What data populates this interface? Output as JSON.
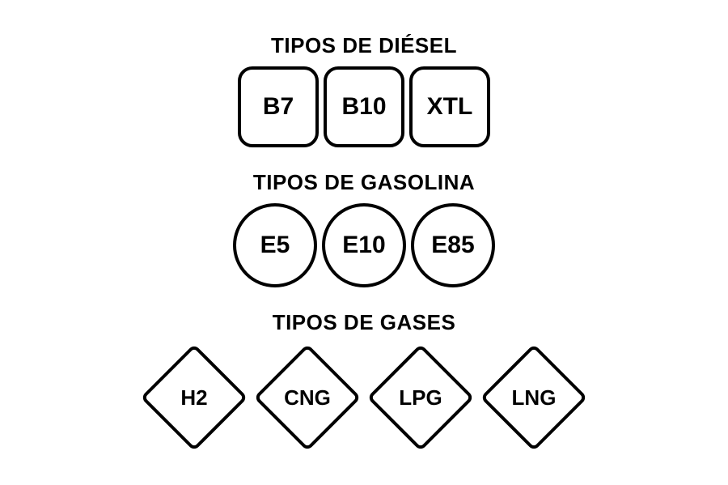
{
  "background_color": "#ffffff",
  "border_color": "#000000",
  "text_color": "#000000",
  "sections": {
    "diesel": {
      "title": "TIPOS DE DIÉSEL",
      "title_fontsize": 26,
      "shape": "square",
      "shape_size": 100,
      "border_width": 4,
      "border_radius": 18,
      "label_fontsize": 30,
      "items": [
        {
          "label": "B7"
        },
        {
          "label": "B10"
        },
        {
          "label": "XTL"
        }
      ]
    },
    "gasoline": {
      "title": "TIPOS DE GASOLINA",
      "title_fontsize": 26,
      "shape": "circle",
      "shape_size": 104,
      "border_width": 4,
      "label_fontsize": 30,
      "items": [
        {
          "label": "E5"
        },
        {
          "label": "E10"
        },
        {
          "label": "E85"
        }
      ]
    },
    "gases": {
      "title": "TIPOS DE GASES",
      "title_fontsize": 26,
      "shape": "diamond",
      "shape_size": 94,
      "wrap_size": 134,
      "border_width": 4,
      "border_radius": 8,
      "label_fontsize": 26,
      "items": [
        {
          "label": "H2"
        },
        {
          "label": "CNG"
        },
        {
          "label": "LPG"
        },
        {
          "label": "LNG"
        }
      ]
    }
  }
}
